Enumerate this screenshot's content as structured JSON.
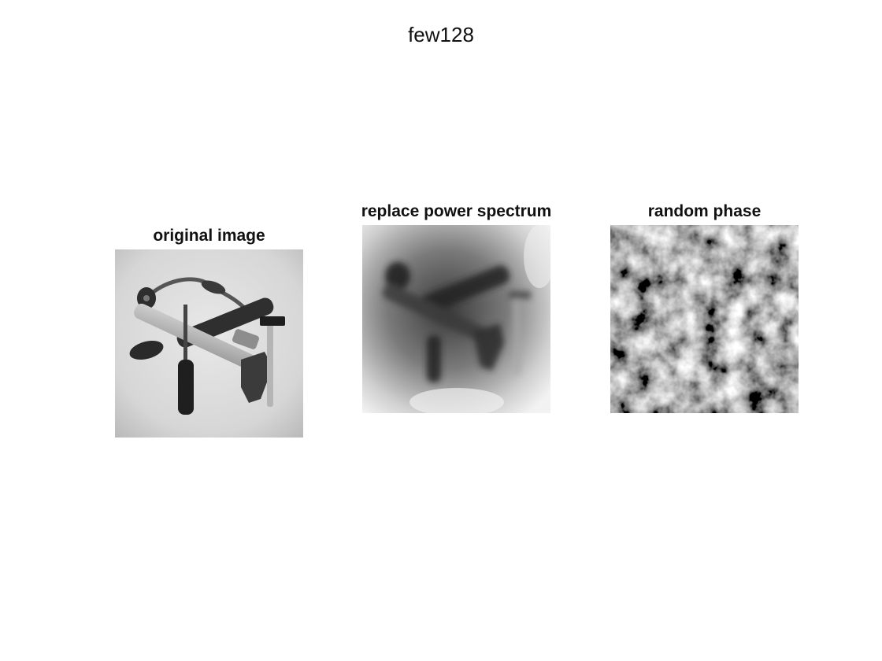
{
  "figure": {
    "title": "few128"
  },
  "panels": [
    {
      "title": "original image"
    },
    {
      "title": "replace power spectrum"
    },
    {
      "title": "random phase"
    }
  ],
  "colors": {
    "background": "#ffffff",
    "text": "#111111"
  }
}
